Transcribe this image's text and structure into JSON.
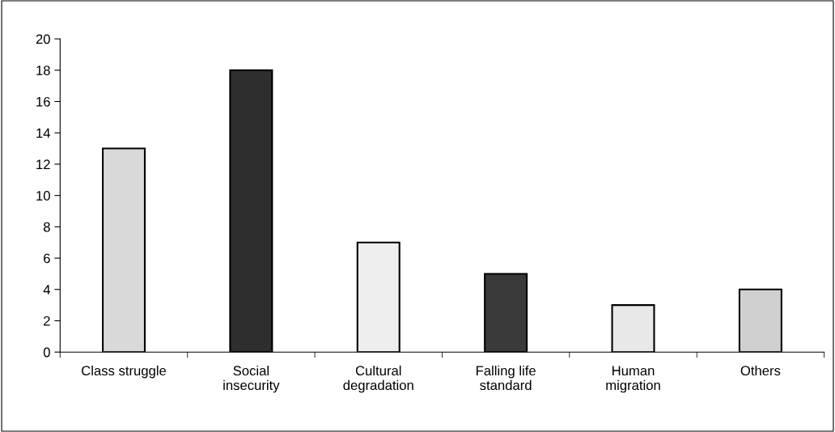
{
  "chart_data": {
    "type": "bar",
    "categories": [
      "Class struggle",
      "Social\ninsecurity",
      "Cultural\ndegradation",
      "Falling life\nstandard",
      "Human\nmigration",
      "Others"
    ],
    "values": [
      13,
      18,
      7,
      5,
      3,
      4
    ],
    "colors": [
      "#d9d9d9",
      "#2e2e2e",
      "#eeeeee",
      "#3a3a3a",
      "#e8e8e8",
      "#d0d0d0"
    ],
    "ylim": [
      0,
      20
    ],
    "yticks": [
      0,
      2,
      4,
      6,
      8,
      10,
      12,
      14,
      16,
      18,
      20
    ],
    "grid": false,
    "legend": false
  }
}
